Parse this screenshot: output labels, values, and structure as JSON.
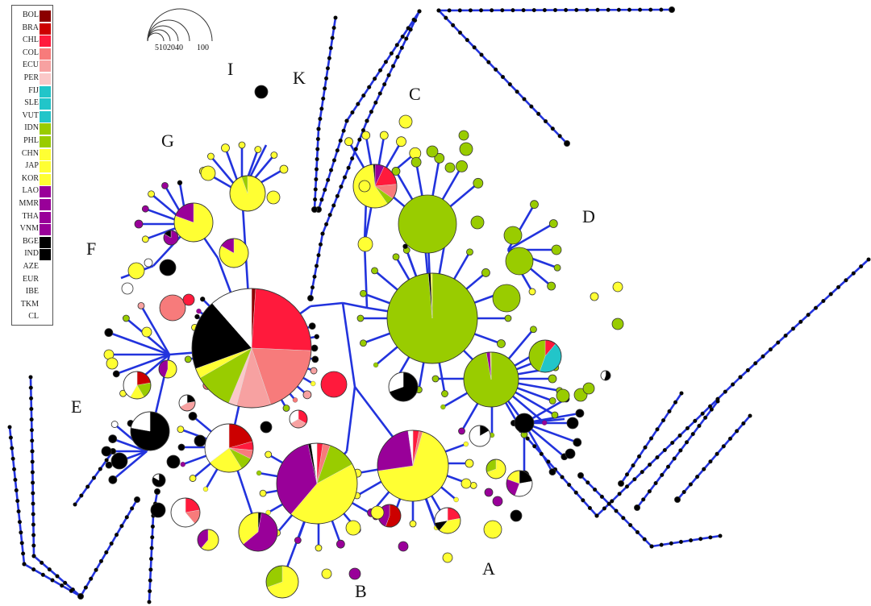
{
  "legend": {
    "items": [
      {
        "code": "BOL",
        "color": "#8b0000"
      },
      {
        "code": "BRA",
        "color": "#cc0000"
      },
      {
        "code": "CHL",
        "color": "#ff1a3c"
      },
      {
        "code": "COL",
        "color": "#f77b7b"
      },
      {
        "code": "ECU",
        "color": "#f7a1a1"
      },
      {
        "code": "PER",
        "color": "#fbc8c8"
      },
      {
        "code": "FIJ",
        "color": "#22c5c9"
      },
      {
        "code": "SLE",
        "color": "#22c5c9"
      },
      {
        "code": "VUT",
        "color": "#22c5c9"
      },
      {
        "code": "IDN",
        "color": "#99cc00"
      },
      {
        "code": "PHL",
        "color": "#99cc00"
      },
      {
        "code": "CHN",
        "color": "#ffff33"
      },
      {
        "code": "JAP",
        "color": "#ffff33"
      },
      {
        "code": "KOR",
        "color": "#ffff33"
      },
      {
        "code": "LAO",
        "color": "#990099"
      },
      {
        "code": "MMR",
        "color": "#990099"
      },
      {
        "code": "THA",
        "color": "#990099"
      },
      {
        "code": "VNM",
        "color": "#990099"
      },
      {
        "code": "BGE",
        "color": "#000000"
      },
      {
        "code": "IND",
        "color": "#000000"
      },
      {
        "code": "AZE",
        "color": "#ffffff"
      },
      {
        "code": "EUR",
        "color": "#ffffff"
      },
      {
        "code": "IBE",
        "color": "#ffffff"
      },
      {
        "code": "TKM",
        "color": "#ffffff"
      },
      {
        "code": "CL",
        "color": "#ffffff"
      }
    ]
  },
  "size_scale": {
    "labels": [
      "5",
      "10",
      "20",
      "40",
      "100"
    ]
  },
  "clusters": [
    "A",
    "B",
    "C",
    "D",
    "E",
    "F",
    "G",
    "I",
    "K"
  ],
  "colors": {
    "edge": "#2233dd",
    "node_outline": "#333333",
    "chain_node": "#000000"
  }
}
